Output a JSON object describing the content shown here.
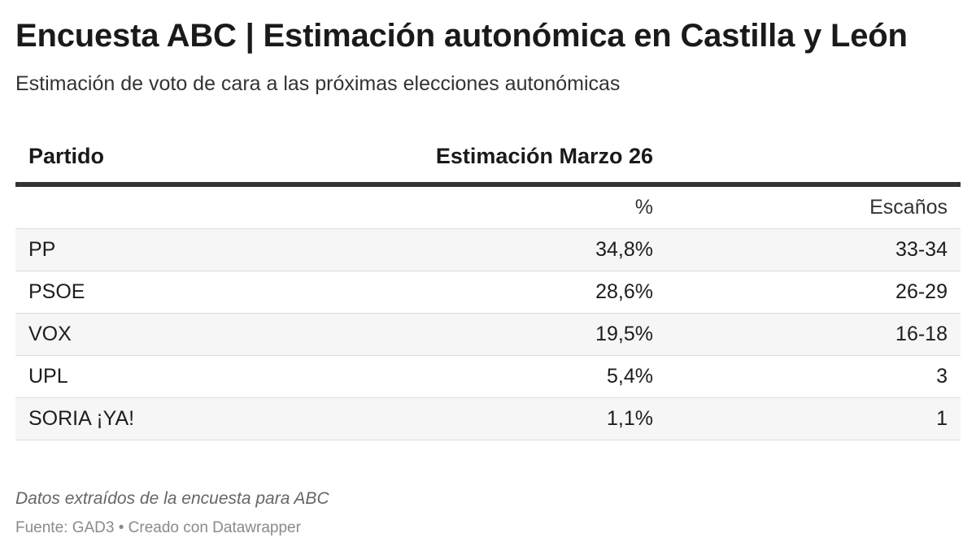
{
  "header": {
    "title": "Encuesta ABC | Estimación autonómica en Castilla y León",
    "subtitle": "Estimación de voto de cara a las próximas elecciones autonómicas"
  },
  "table": {
    "col_party": "Partido",
    "col_estimate": "Estimación Marzo 26",
    "sub_pct": "%",
    "sub_seats": "Escaños",
    "rows": [
      {
        "party": "PP",
        "pct": "34,8%",
        "seats": "33-34"
      },
      {
        "party": "PSOE",
        "pct": "28,6%",
        "seats": "26-29"
      },
      {
        "party": "VOX",
        "pct": "19,5%",
        "seats": "16-18"
      },
      {
        "party": "UPL",
        "pct": "5,4%",
        "seats": "3"
      },
      {
        "party": "SORIA ¡YA!",
        "pct": "1,1%",
        "seats": "1"
      }
    ]
  },
  "footer": {
    "notes": "Datos extraídos de la encuesta para ABC",
    "source": "Fuente: GAD3 • Creado con Datawrapper"
  },
  "colors": {
    "header_rule": "#333333",
    "row_shade": "#f6f6f6",
    "row_divider": "#dddddd"
  },
  "chart_data": {
    "type": "table",
    "title": "Encuesta ABC | Estimación autonómica en Castilla y León",
    "subtitle": "Estimación de voto de cara a las próximas elecciones autonómicas",
    "columns": [
      "Partido",
      "%",
      "Escaños"
    ],
    "group_header": "Estimación Marzo 26",
    "categories": [
      "PP",
      "PSOE",
      "VOX",
      "UPL",
      "SORIA ¡YA!"
    ],
    "series": [
      {
        "name": "%",
        "values": [
          34.8,
          28.6,
          19.5,
          5.4,
          1.1
        ]
      },
      {
        "name": "Escaños",
        "values": [
          "33-34",
          "26-29",
          "16-18",
          "3",
          "1"
        ]
      }
    ]
  }
}
